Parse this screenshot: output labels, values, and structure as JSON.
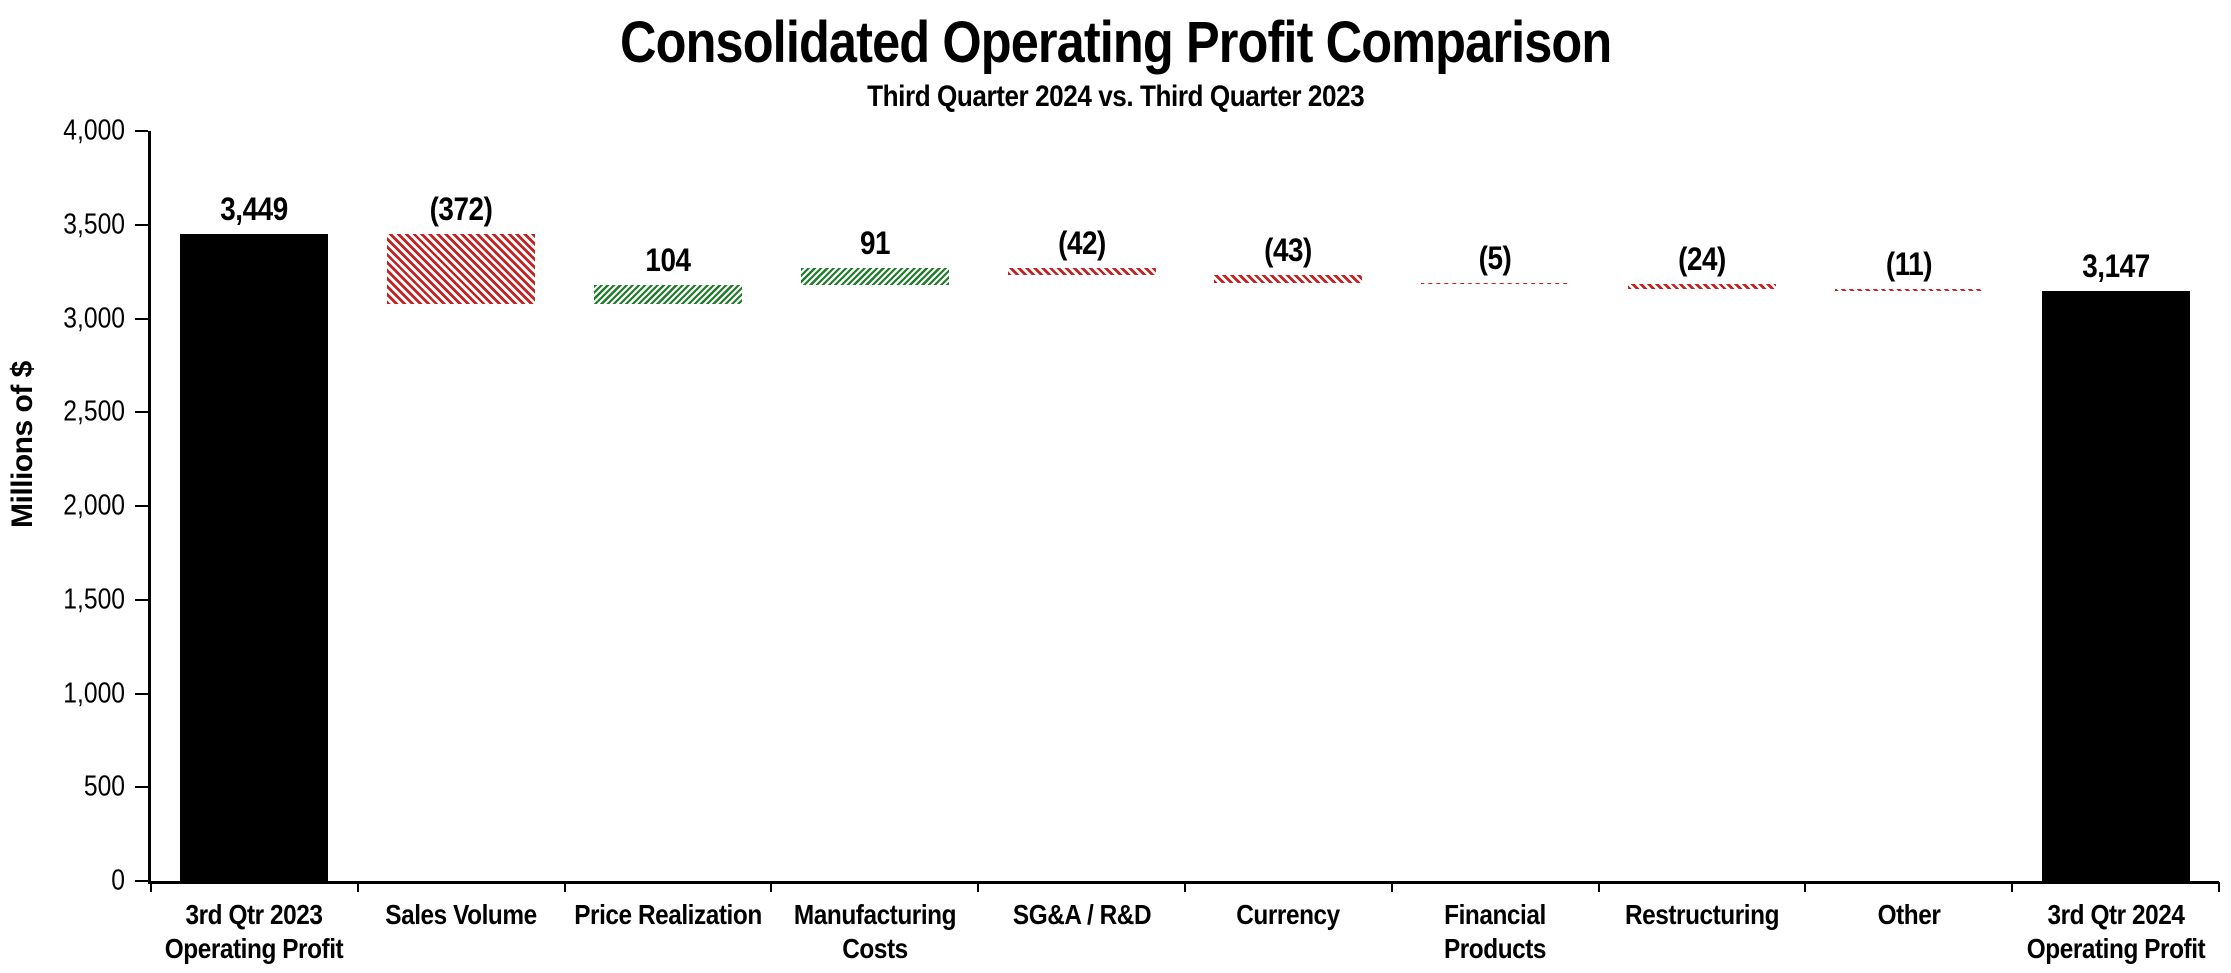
{
  "chart_data": {
    "type": "bar",
    "subtype": "waterfall",
    "title": "Consolidated Operating Profit Comparison",
    "subtitle": "Third Quarter 2024 vs. Third Quarter 2023",
    "ylabel": "Millions of $",
    "ylim": [
      0,
      4000
    ],
    "ytick_values": [
      0,
      500,
      1000,
      1500,
      2000,
      2500,
      3000,
      3500,
      4000
    ],
    "ytick_labels": [
      "0",
      "500",
      "1,000",
      "1,500",
      "2,000",
      "2,500",
      "3,000",
      "3,500",
      "4,000"
    ],
    "grid": false,
    "legend": false,
    "colors": {
      "total": "#000000",
      "increase": "#1e7d28",
      "decrease": "#c32222"
    },
    "steps": [
      {
        "category_lines": [
          "3rd Qtr 2023",
          "Operating Profit"
        ],
        "value": 3449,
        "kind": "total",
        "label": "3,449"
      },
      {
        "category_lines": [
          "Sales Volume"
        ],
        "value": -372,
        "kind": "delta",
        "label": "(372)"
      },
      {
        "category_lines": [
          "Price Realization"
        ],
        "value": 104,
        "kind": "delta",
        "label": "104"
      },
      {
        "category_lines": [
          "Manufacturing",
          "Costs"
        ],
        "value": 91,
        "kind": "delta",
        "label": "91"
      },
      {
        "category_lines": [
          "SG&A / R&D"
        ],
        "value": -42,
        "kind": "delta",
        "label": "(42)"
      },
      {
        "category_lines": [
          "Currency"
        ],
        "value": -43,
        "kind": "delta",
        "label": "(43)"
      },
      {
        "category_lines": [
          "Financial",
          "Products"
        ],
        "value": -5,
        "kind": "delta",
        "label": "(5)"
      },
      {
        "category_lines": [
          "Restructuring"
        ],
        "value": -24,
        "kind": "delta",
        "label": "(24)"
      },
      {
        "category_lines": [
          "Other"
        ],
        "value": -11,
        "kind": "delta",
        "label": "(11)"
      },
      {
        "category_lines": [
          "3rd Qtr 2024",
          "Operating Profit"
        ],
        "value": 3147,
        "kind": "total",
        "label": "3,147"
      }
    ]
  }
}
